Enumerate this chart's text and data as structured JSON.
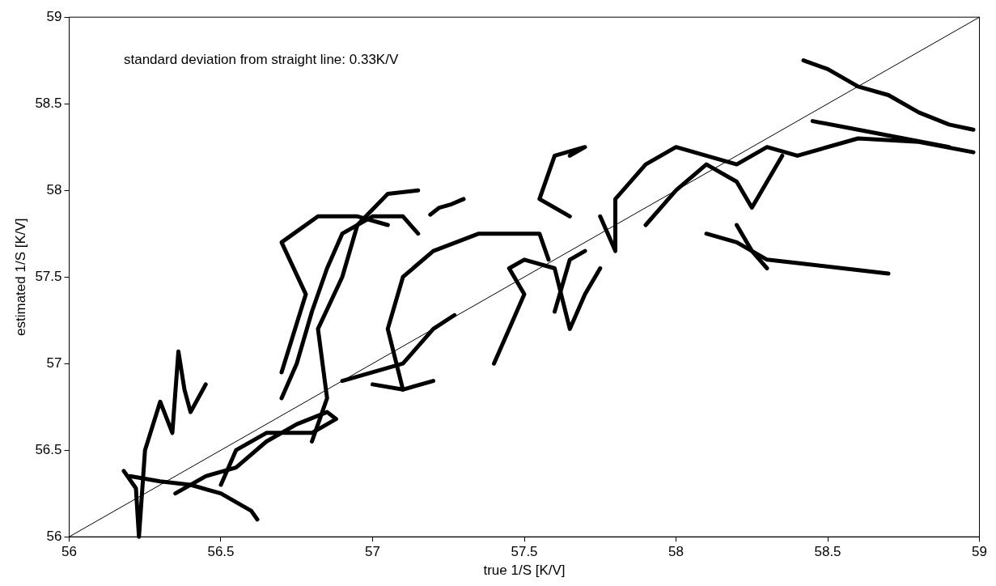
{
  "chart_data": {
    "type": "line",
    "xlabel": "true 1/S [K/V]",
    "ylabel": "estimated 1/S [K/V]",
    "annotations": [
      "standard deviation from straight line: 0.33K/V"
    ],
    "xlim": [
      56,
      59
    ],
    "ylim": [
      56,
      59
    ],
    "xticks": [
      56,
      56.5,
      57,
      57.5,
      58,
      58.5,
      59
    ],
    "yticks": [
      56,
      56.5,
      57,
      57.5,
      58,
      58.5,
      59
    ],
    "grid": false,
    "legend": false,
    "marker": "none",
    "series": [
      {
        "color": "#000000",
        "x": [
          56.18,
          56.22,
          56.23,
          56.25,
          56.3,
          56.34,
          56.36,
          56.38,
          56.4,
          56.45
        ],
        "values": [
          56.38,
          56.28,
          56.0,
          56.5,
          56.78,
          56.6,
          57.07,
          56.85,
          56.72,
          56.88
        ]
      },
      {
        "color": "#000000",
        "x": [
          56.2,
          56.3,
          56.4,
          56.5,
          56.55,
          56.6,
          56.62
        ],
        "values": [
          56.35,
          56.32,
          56.3,
          56.25,
          56.2,
          56.15,
          56.1
        ]
      },
      {
        "color": "#000000",
        "x": [
          56.35,
          56.45,
          56.55,
          56.65,
          56.75,
          56.85,
          56.88,
          56.8,
          56.65,
          56.55,
          56.5
        ],
        "values": [
          56.25,
          56.35,
          56.4,
          56.55,
          56.65,
          56.72,
          56.68,
          56.6,
          56.6,
          56.5,
          56.3
        ]
      },
      {
        "color": "#000000",
        "x": [
          56.7,
          56.75,
          56.8,
          56.85,
          56.9,
          57.0,
          57.1,
          57.15
        ],
        "values": [
          56.8,
          57.0,
          57.3,
          57.55,
          57.75,
          57.85,
          57.85,
          57.75
        ]
      },
      {
        "color": "#000000",
        "x": [
          56.8,
          56.85,
          56.82,
          56.9,
          56.95,
          57.05,
          57.15
        ],
        "values": [
          56.55,
          56.8,
          57.2,
          57.5,
          57.8,
          57.98,
          58.0
        ]
      },
      {
        "color": "#000000",
        "x": [
          56.7,
          56.78,
          56.7,
          56.82,
          56.95,
          57.05
        ],
        "values": [
          56.95,
          57.4,
          57.7,
          57.85,
          57.85,
          57.8
        ]
      },
      {
        "color": "#000000",
        "x": [
          57.1,
          57.05,
          57.1,
          57.2,
          57.35,
          57.55,
          57.58
        ],
        "values": [
          56.85,
          57.2,
          57.5,
          57.65,
          57.75,
          57.75,
          57.6
        ]
      },
      {
        "color": "#000000",
        "x": [
          56.9,
          57.0,
          57.1,
          57.2,
          57.27
        ],
        "values": [
          56.9,
          56.95,
          57.0,
          57.2,
          57.28
        ]
      },
      {
        "color": "#000000",
        "x": [
          57.0,
          57.1,
          57.2
        ],
        "values": [
          56.88,
          56.85,
          56.9
        ]
      },
      {
        "color": "#000000",
        "x": [
          57.4,
          57.45,
          57.5,
          57.45,
          57.5,
          57.6,
          57.65,
          57.7,
          57.75
        ],
        "values": [
          57.0,
          57.2,
          57.4,
          57.55,
          57.6,
          57.55,
          57.2,
          57.4,
          57.55
        ]
      },
      {
        "color": "#000000",
        "x": [
          57.6,
          57.65,
          57.7
        ],
        "values": [
          57.3,
          57.6,
          57.65
        ]
      },
      {
        "color": "#000000",
        "x": [
          57.75,
          57.8,
          57.8,
          57.9,
          58.0,
          58.1,
          58.2,
          58.3,
          58.4,
          58.6,
          58.8,
          58.98
        ],
        "values": [
          57.85,
          57.65,
          57.95,
          58.15,
          58.25,
          58.2,
          58.15,
          58.25,
          58.2,
          58.3,
          58.28,
          58.22
        ]
      },
      {
        "color": "#000000",
        "x": [
          57.9,
          58.0,
          58.1,
          58.2,
          58.25,
          58.3,
          58.35
        ],
        "values": [
          57.8,
          58.0,
          58.15,
          58.05,
          57.9,
          58.05,
          58.2
        ]
      },
      {
        "color": "#000000",
        "x": [
          58.1,
          58.2,
          58.3,
          58.4,
          58.55,
          58.7
        ],
        "values": [
          57.75,
          57.7,
          57.6,
          57.58,
          57.55,
          57.52
        ]
      },
      {
        "color": "#000000",
        "x": [
          58.2,
          58.25,
          58.3
        ],
        "values": [
          57.8,
          57.65,
          57.55
        ]
      },
      {
        "color": "#000000",
        "x": [
          58.42,
          58.5,
          58.6,
          58.7,
          58.8,
          58.9,
          58.98
        ],
        "values": [
          58.75,
          58.7,
          58.6,
          58.55,
          58.45,
          58.38,
          58.35
        ]
      },
      {
        "color": "#000000",
        "x": [
          58.45,
          58.6,
          58.75,
          58.9
        ],
        "values": [
          58.4,
          58.35,
          58.3,
          58.25
        ]
      },
      {
        "color": "#000000",
        "x": [
          57.65,
          57.7,
          57.6,
          57.55,
          57.65
        ],
        "values": [
          58.2,
          58.25,
          58.2,
          57.95,
          57.85
        ]
      },
      {
        "color": "#000000",
        "x": [
          57.19,
          57.22,
          57.26,
          57.3
        ],
        "values": [
          57.86,
          57.9,
          57.92,
          57.95
        ]
      },
      {
        "color": "#000000",
        "x": [
          56,
          59
        ],
        "values": [
          56,
          59
        ]
      }
    ]
  }
}
